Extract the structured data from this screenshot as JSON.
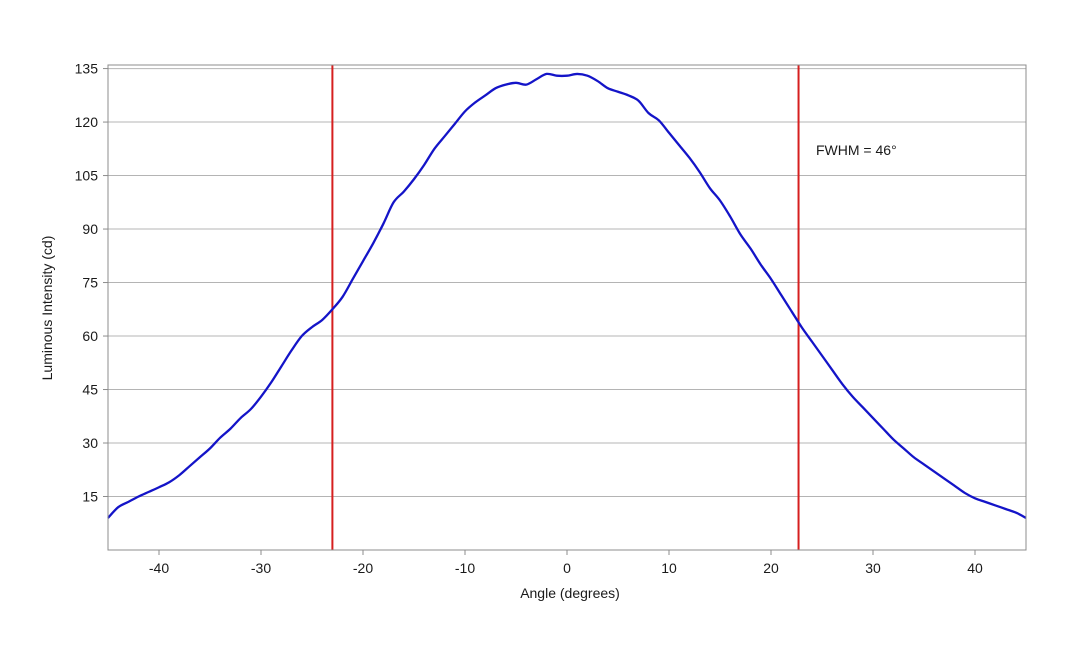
{
  "chart_data": {
    "type": "line",
    "title": "",
    "xlabel": "Angle (degrees)",
    "ylabel": "Luminous Intensity (cd)",
    "xlim": [
      -45,
      45
    ],
    "ylim": [
      0,
      136
    ],
    "xticks": [
      -40,
      -30,
      -20,
      -10,
      0,
      10,
      20,
      30,
      40
    ],
    "yticks": [
      15,
      30,
      45,
      60,
      75,
      90,
      105,
      120,
      135
    ],
    "grid": "horizontal",
    "annotation": "FWHM = 46°",
    "vlines": [
      -23,
      22.7
    ],
    "series": [
      {
        "name": "",
        "color": "#1414c8",
        "x": [
          -45,
          -44,
          -43,
          -42,
          -41,
          -40,
          -39,
          -38,
          -37,
          -36,
          -35,
          -34,
          -33,
          -32,
          -31,
          -30,
          -29,
          -28,
          -27,
          -26,
          -25,
          -24,
          -23,
          -22,
          -21,
          -20,
          -19,
          -18,
          -17,
          -16,
          -15,
          -14,
          -13,
          -12,
          -11,
          -10,
          -9,
          -8,
          -7,
          -6,
          -5,
          -4,
          -3,
          -2,
          -1,
          0,
          1,
          2,
          3,
          4,
          5,
          6,
          7,
          8,
          9,
          10,
          11,
          12,
          13,
          14,
          15,
          16,
          17,
          18,
          19,
          20,
          21,
          22,
          23,
          24,
          25,
          26,
          27,
          28,
          29,
          30,
          31,
          32,
          33,
          34,
          35,
          36,
          37,
          38,
          39,
          40,
          41,
          42,
          43,
          44,
          45
        ],
        "y": [
          9,
          12,
          13.5,
          15,
          16.3,
          17.6,
          19,
          21,
          23.5,
          26,
          28.5,
          31.5,
          34,
          37,
          39.5,
          43,
          47,
          51.5,
          56,
          60,
          62.5,
          64.5,
          67.5,
          71,
          76,
          81,
          86,
          91.5,
          97.5,
          100.5,
          104,
          108,
          112.5,
          116,
          119.5,
          123,
          125.5,
          127.5,
          129.5,
          130.5,
          131,
          130.5,
          132,
          133.5,
          133,
          133,
          133.5,
          133,
          131.5,
          129.5,
          128.5,
          127.5,
          126,
          122.5,
          120.5,
          117,
          113.5,
          110,
          106,
          101.5,
          98,
          93.5,
          88.5,
          84.5,
          80,
          76,
          71.5,
          67,
          62.5,
          58.5,
          54.5,
          50.5,
          46.5,
          43,
          40,
          37,
          34,
          31,
          28.5,
          26,
          24,
          22,
          20,
          18,
          16,
          14.5,
          13.5,
          12.5,
          11.5,
          10.5,
          9
        ]
      }
    ]
  }
}
